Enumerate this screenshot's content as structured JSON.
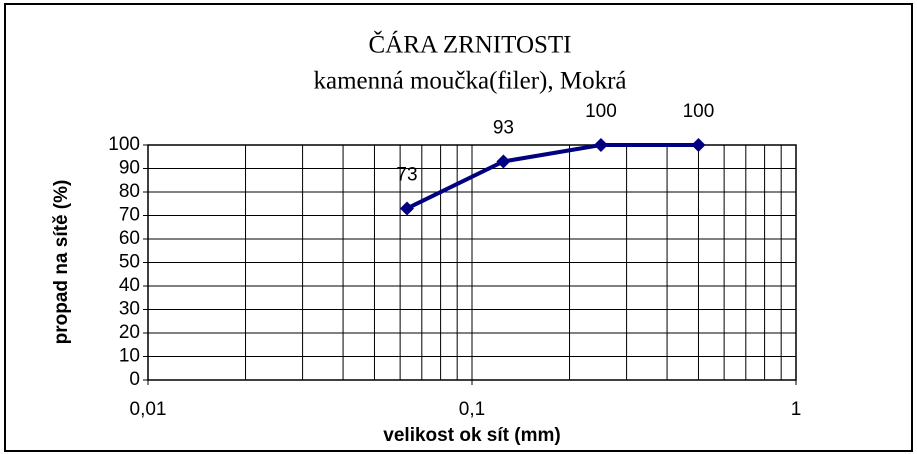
{
  "chart_data": {
    "type": "line",
    "title": "ČÁRA ZRNITOSTI",
    "subtitle": "kamenná moučka(filer), Mokrá",
    "x_label": "velikost ok sít (mm)",
    "y_label": "propad na sítě (%)",
    "x": [
      0.063,
      0.125,
      0.25,
      0.5
    ],
    "series": [
      {
        "name": "propad",
        "color": "#000080",
        "values": [
          73,
          93,
          100,
          100
        ]
      }
    ],
    "x_log": true,
    "xlim": [
      0.01,
      1
    ],
    "xticks": [
      {
        "value": 0.01,
        "label": "0,01"
      },
      {
        "value": 0.1,
        "label": "0,1"
      },
      1
    ],
    "xminor_ticks": [
      0.02,
      0.03,
      0.04,
      0.05,
      0.06,
      0.07,
      0.08,
      0.09,
      0.2,
      0.3,
      0.4,
      0.5,
      0.6,
      0.7,
      0.8,
      0.9
    ],
    "ylim": [
      0,
      100
    ],
    "yticks": [
      0,
      10,
      20,
      30,
      40,
      50,
      60,
      70,
      80,
      90,
      100
    ],
    "grid": true
  }
}
